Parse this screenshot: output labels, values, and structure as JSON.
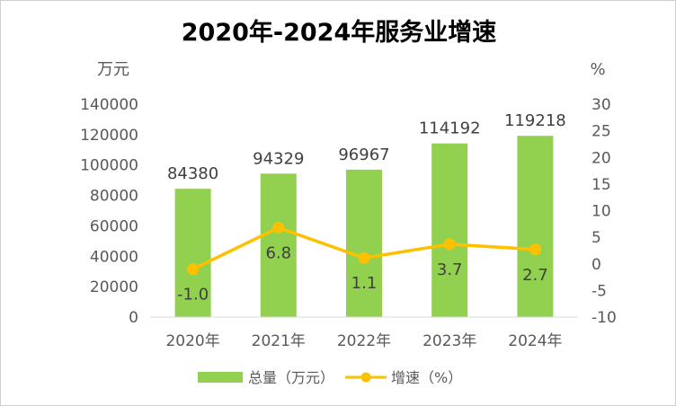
{
  "chart_data": {
    "type": "bar+line",
    "title": "2020年-2024年服务业增速",
    "categories": [
      "2020年",
      "2021年",
      "2022年",
      "2023年",
      "2024年"
    ],
    "series": [
      {
        "name": "总量（万元）",
        "type": "bar",
        "axis": "left",
        "color": "#92d050",
        "values": [
          84380,
          94329,
          96967,
          114192,
          119218
        ],
        "labels": [
          "84380",
          "94329",
          "96967",
          "114192",
          "119218"
        ]
      },
      {
        "name": "增速（%）",
        "type": "line",
        "axis": "right",
        "color": "#ffc000",
        "values": [
          -1.0,
          6.8,
          1.1,
          3.7,
          2.7
        ],
        "labels": [
          "-1.0",
          "6.8",
          "1.1",
          "3.7",
          "2.7"
        ]
      }
    ],
    "y_left": {
      "unit": "万元",
      "ylim": [
        0,
        140000
      ],
      "ticks": [
        "0",
        "20000",
        "40000",
        "60000",
        "80000",
        "100000",
        "120000",
        "140000"
      ]
    },
    "y_right": {
      "unit": "%",
      "ylim": [
        -10,
        30
      ],
      "ticks": [
        "-10",
        "-5",
        "0",
        "5",
        "10",
        "15",
        "20",
        "25",
        "30"
      ]
    },
    "grid": false,
    "legend": "bottom"
  }
}
